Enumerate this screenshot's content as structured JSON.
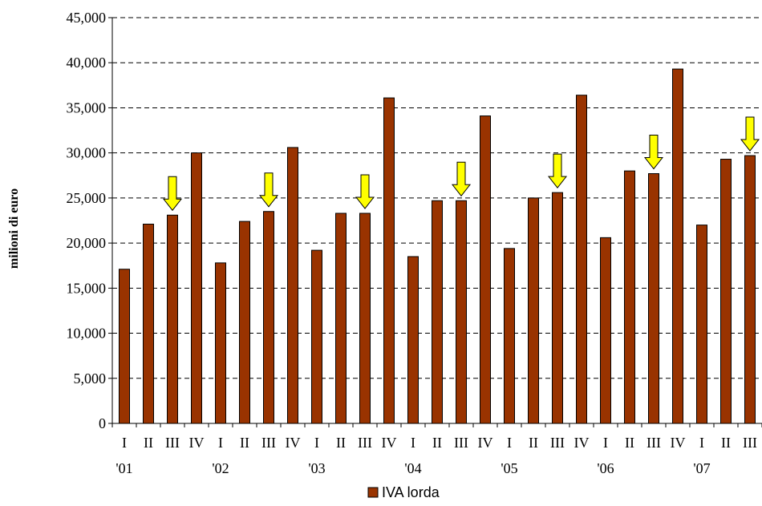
{
  "chart_data": {
    "type": "bar",
    "ylabel": "milioni di euro",
    "ylim": [
      0,
      45000
    ],
    "yticks": [
      0,
      5000,
      10000,
      15000,
      20000,
      25000,
      30000,
      35000,
      40000,
      45000
    ],
    "ytick_labels": [
      "0",
      "5,000",
      "10,000",
      "15,000",
      "20,000",
      "25,000",
      "30,000",
      "35,000",
      "40,000",
      "45,000"
    ],
    "grid": "horizontal dashed",
    "categories": [
      "I",
      "II",
      "III",
      "IV",
      "I",
      "II",
      "III",
      "IV",
      "I",
      "II",
      "III",
      "IV",
      "I",
      "II",
      "III",
      "IV",
      "I",
      "II",
      "III",
      "IV",
      "I",
      "II",
      "III",
      "IV",
      "I",
      "II",
      "III"
    ],
    "years": [
      "'01",
      "'02",
      "'03",
      "'04",
      "'05",
      "'06",
      "'07"
    ],
    "series": [
      {
        "name": "IVA lorda",
        "color": "#993300",
        "values": [
          17100,
          22100,
          23100,
          30000,
          17800,
          22400,
          23500,
          30600,
          19200,
          23300,
          23300,
          36100,
          18500,
          24700,
          24700,
          34100,
          19400,
          25000,
          25600,
          36400,
          20600,
          28000,
          27700,
          39300,
          22000,
          29300,
          29700
        ]
      }
    ],
    "annotations": {
      "type": "yellow-down-arrows",
      "color": "#ffff00",
      "on_bars": [
        2,
        6,
        10,
        14,
        18,
        22,
        26
      ]
    },
    "legend": {
      "placement": "bottom-center",
      "label": "IVA lorda"
    }
  }
}
